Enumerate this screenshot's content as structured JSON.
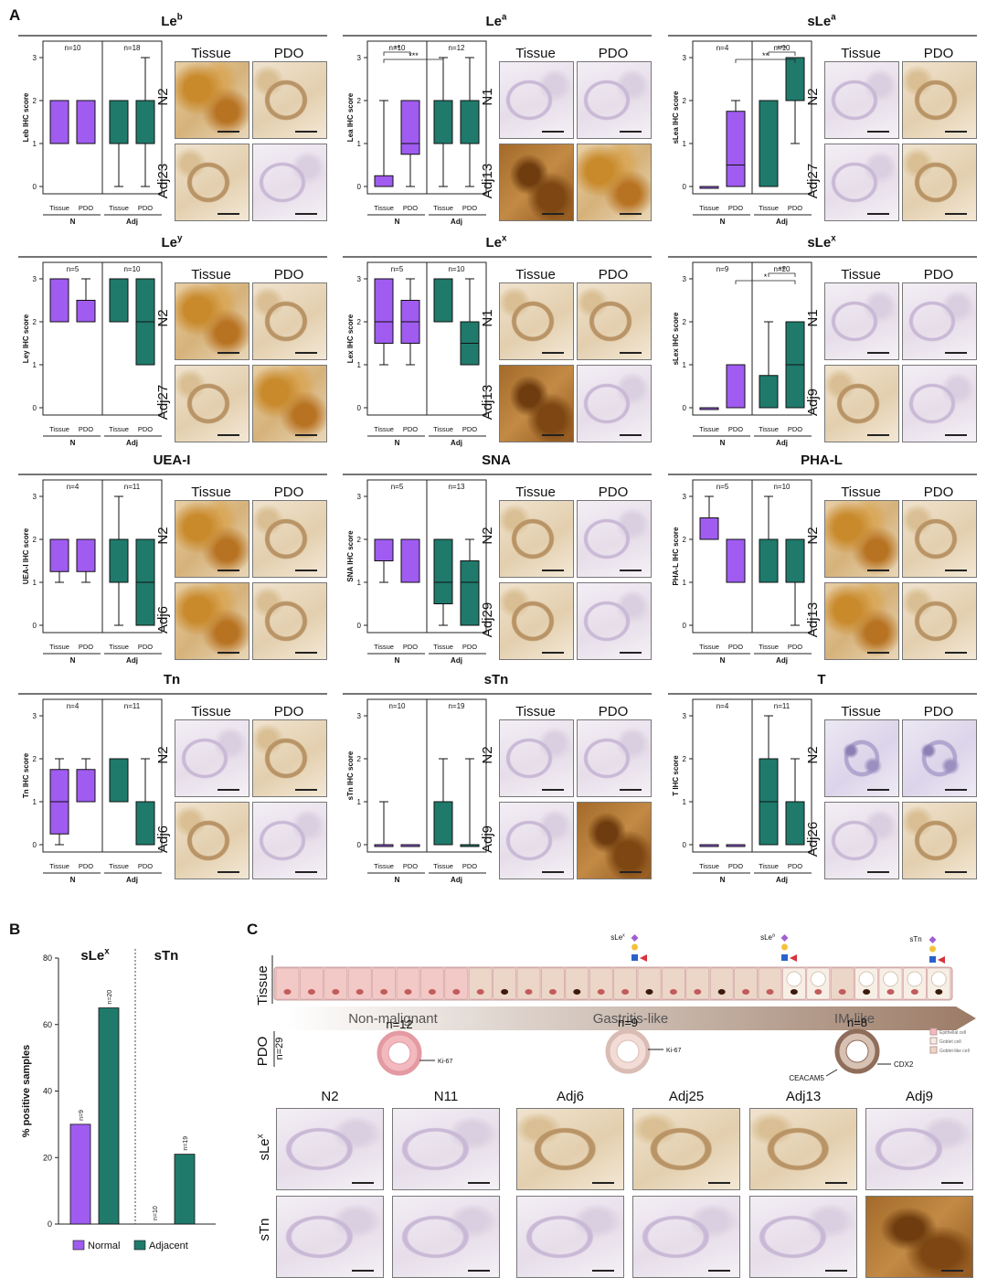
{
  "panel_letters": {
    "a": "A",
    "b": "B",
    "c": "C"
  },
  "tile_headers": {
    "tissue": "Tissue",
    "pdo": "PDO"
  },
  "axis": {
    "tissue": "Tissue",
    "pdo": "PDO",
    "group_n": "N",
    "group_adj": "Adj"
  },
  "colors": {
    "normal": "#a05cf0",
    "adjacent": "#1f7a6c"
  },
  "panelA": [
    {
      "title": "Le",
      "sup": "b",
      "ylabel": "Le^b IHC score",
      "n_left": "n=10",
      "n_right": "n=18",
      "row1": "N2",
      "row2": "Adj23",
      "sig": [],
      "boxes": [
        [
          1,
          1,
          2,
          2,
          2
        ],
        [
          1,
          1,
          2,
          2,
          2
        ],
        [
          0,
          1,
          2,
          2,
          2
        ],
        [
          0,
          1,
          1,
          2,
          3
        ]
      ],
      "tiles": [
        "brown",
        "tan",
        "tan",
        "light"
      ]
    },
    {
      "title": "Le",
      "sup": "a",
      "ylabel": "Le^a IHC score",
      "n_left": "n=10",
      "n_right": "n=12",
      "row1": "N1",
      "row2": "Adj13",
      "sig": [
        {
          "from": 0,
          "to": 1,
          "label": "**",
          "level": 1
        },
        {
          "from": 0,
          "to": 2,
          "label": "***",
          "level": 2
        }
      ],
      "boxes": [
        [
          0,
          0,
          0,
          0.25,
          2
        ],
        [
          0,
          0.75,
          1,
          2,
          2
        ],
        [
          0,
          1,
          2,
          2,
          3
        ],
        [
          0,
          1,
          2,
          2,
          3
        ]
      ],
      "tiles": [
        "light",
        "light",
        "dark",
        "brown"
      ]
    },
    {
      "title": "sLe",
      "sup": "a",
      "ylabel": "sLe^a IHC score",
      "n_left": "n=4",
      "n_right": "n=10",
      "row1": "N2",
      "row2": "Adj27",
      "sig": [
        {
          "from": 2,
          "to": 3,
          "label": "***",
          "level": 1
        },
        {
          "from": 1,
          "to": 3,
          "label": "**",
          "level": 2
        }
      ],
      "boxes": [
        [
          0,
          0,
          0,
          0,
          0
        ],
        [
          0,
          0,
          0.5,
          1.75,
          2
        ],
        [
          0,
          0,
          2,
          2,
          2
        ],
        [
          1,
          2,
          2,
          3,
          3
        ]
      ],
      "tiles": [
        "light",
        "tan",
        "light",
        "tan"
      ]
    },
    {
      "title": "Le",
      "sup": "y",
      "ylabel": "Le^y IHC score",
      "n_left": "n=5",
      "n_right": "n=10",
      "row1": "N2",
      "row2": "Adj27",
      "sig": [],
      "boxes": [
        [
          2,
          2,
          3,
          3,
          3
        ],
        [
          2,
          2,
          2,
          2.5,
          3
        ],
        [
          2,
          2,
          3,
          3,
          3
        ],
        [
          1,
          1,
          2,
          3,
          3
        ]
      ],
      "tiles": [
        "brown",
        "tan",
        "tan",
        "brown"
      ]
    },
    {
      "title": "Le",
      "sup": "x",
      "ylabel": "Le^x IHC score",
      "n_left": "n=5",
      "n_right": "n=10",
      "row1": "N1",
      "row2": "Adj13",
      "sig": [],
      "boxes": [
        [
          1,
          1.5,
          2,
          3,
          3
        ],
        [
          1,
          1.5,
          2,
          2.5,
          3
        ],
        [
          2,
          2,
          3,
          3,
          3
        ],
        [
          1,
          1,
          1.5,
          2,
          3
        ]
      ],
      "tiles": [
        "tan",
        "tan",
        "dark",
        "light"
      ]
    },
    {
      "title": "sLe",
      "sup": "x",
      "ylabel": "sLe^x IHC score",
      "n_left": "n=9",
      "n_right": "n=20",
      "row1": "N1",
      "row2": "Adj9",
      "sig": [
        {
          "from": 2,
          "to": 3,
          "label": "**",
          "level": 1
        },
        {
          "from": 1,
          "to": 3,
          "label": "*",
          "level": 2
        }
      ],
      "boxes": [
        [
          0,
          0,
          0,
          0,
          0
        ],
        [
          0,
          0,
          0,
          1,
          1
        ],
        [
          0,
          0,
          0,
          0.75,
          2
        ],
        [
          0,
          0,
          1,
          2,
          2
        ]
      ],
      "tiles": [
        "light",
        "light",
        "tan",
        "light"
      ]
    },
    {
      "title": "UEA-I",
      "sup": "",
      "ylabel": "UEA-I IHC score",
      "n_left": "n=4",
      "n_right": "n=11",
      "row1": "N2",
      "row2": "Adj6",
      "sig": [],
      "boxes": [
        [
          1,
          1.25,
          2,
          2,
          2
        ],
        [
          1,
          1.25,
          2,
          2,
          2
        ],
        [
          0,
          1,
          2,
          2,
          3
        ],
        [
          0,
          0,
          1,
          2,
          2
        ]
      ],
      "tiles": [
        "brown",
        "tan",
        "brown",
        "tan"
      ]
    },
    {
      "title": "SNA",
      "sup": "",
      "ylabel": "SNA IHC score",
      "n_left": "n=5",
      "n_right": "n=13",
      "row1": "N2",
      "row2": "Adj29",
      "sig": [],
      "boxes": [
        [
          1,
          1.5,
          2,
          2,
          2
        ],
        [
          1,
          1,
          2,
          2,
          2
        ],
        [
          0,
          0.5,
          1,
          2,
          2
        ],
        [
          0,
          0,
          1,
          1.5,
          2
        ]
      ],
      "tiles": [
        "tan",
        "light",
        "tan",
        "light"
      ]
    },
    {
      "title": "PHA-L",
      "sup": "",
      "ylabel": "PHA-L IHC score",
      "n_left": "n=5",
      "n_right": "n=10",
      "row1": "N2",
      "row2": "Adj13",
      "sig": [],
      "boxes": [
        [
          2,
          2,
          2,
          2.5,
          3
        ],
        [
          1,
          1,
          1,
          2,
          2
        ],
        [
          1,
          1,
          1,
          2,
          3
        ],
        [
          0,
          1,
          1,
          2,
          2
        ]
      ],
      "tiles": [
        "brown",
        "tan",
        "brown",
        "tan"
      ]
    },
    {
      "title": "Tn",
      "sup": "",
      "ylabel": "Tn IHC score",
      "n_left": "n=4",
      "n_right": "n=11",
      "row1": "N2",
      "row2": "Adj6",
      "sig": [],
      "boxes": [
        [
          0,
          0.25,
          1,
          1.75,
          2
        ],
        [
          1,
          1,
          1,
          1.75,
          2
        ],
        [
          1,
          1,
          1,
          2,
          2
        ],
        [
          0,
          0,
          1,
          1,
          2
        ]
      ],
      "tiles": [
        "light",
        "tan",
        "tan",
        "light"
      ]
    },
    {
      "title": "sTn",
      "sup": "",
      "ylabel": "sTn IHC score",
      "n_left": "n=10",
      "n_right": "n=19",
      "row1": "N2",
      "row2": "Adj9",
      "sig": [],
      "boxes": [
        [
          0,
          0,
          0,
          0,
          1
        ],
        [
          0,
          0,
          0,
          0,
          0
        ],
        [
          0,
          0,
          0,
          1,
          2
        ],
        [
          0,
          0,
          0,
          0,
          2
        ]
      ],
      "tiles": [
        "light",
        "light",
        "light",
        "dark"
      ]
    },
    {
      "title": "T",
      "sup": "",
      "ylabel": "T IHC score",
      "n_left": "n=4",
      "n_right": "n=11",
      "row1": "N2",
      "row2": "Adj26",
      "sig": [],
      "boxes": [
        [
          0,
          0,
          0,
          0,
          0
        ],
        [
          0,
          0,
          0,
          0,
          0
        ],
        [
          0,
          0,
          1,
          2,
          3
        ],
        [
          0,
          0,
          0,
          1,
          2
        ]
      ],
      "tiles": [
        "purple",
        "purple",
        "light",
        "tan"
      ]
    }
  ],
  "chart_data": {
    "type": "bar",
    "groups": [
      "sLe^x",
      "sTn"
    ],
    "series": [
      {
        "name": "Normal",
        "values": [
          30,
          0
        ]
      },
      {
        "name": "Adjacent",
        "values": [
          65,
          21
        ]
      }
    ],
    "n_labels": [
      [
        "n=9",
        "n=20"
      ],
      [
        "n=10",
        "n=19"
      ]
    ],
    "ylabel": "% positive samples",
    "ylim": [
      0,
      80
    ],
    "yticks": [
      "0",
      "20",
      "40",
      "60",
      "80"
    ]
  },
  "panelB": {
    "title1": "sLe",
    "title1_sup": "x",
    "title2": "sTn"
  },
  "panelC": {
    "row_tissue": "Tissue",
    "row_pdo": "PDO",
    "pdo_n": "n=29",
    "stages": [
      "Non-malignant",
      "Gastritis-like",
      "IM-like"
    ],
    "counts": [
      "n=12",
      "n=9",
      "n=8"
    ],
    "glycan_labels": [
      {
        "base": "sLe",
        "sup": "x"
      },
      {
        "base": "sLe",
        "sup": "a"
      },
      {
        "base": "sTn",
        "sup": ""
      }
    ],
    "markers": [
      "Ki-67",
      "Ki-67",
      "CDX2",
      "CEACAM5"
    ],
    "cell_legend": [
      "Epithelial cell",
      "Goblet cell",
      "Goblet-like cell"
    ],
    "col_labels": [
      "N2",
      "N11",
      "Adj6",
      "Adj25",
      "Adj13",
      "Adj9"
    ],
    "row_labels": [
      {
        "base": "sLe",
        "sup": "x"
      },
      {
        "base": "sTn",
        "sup": ""
      }
    ]
  }
}
